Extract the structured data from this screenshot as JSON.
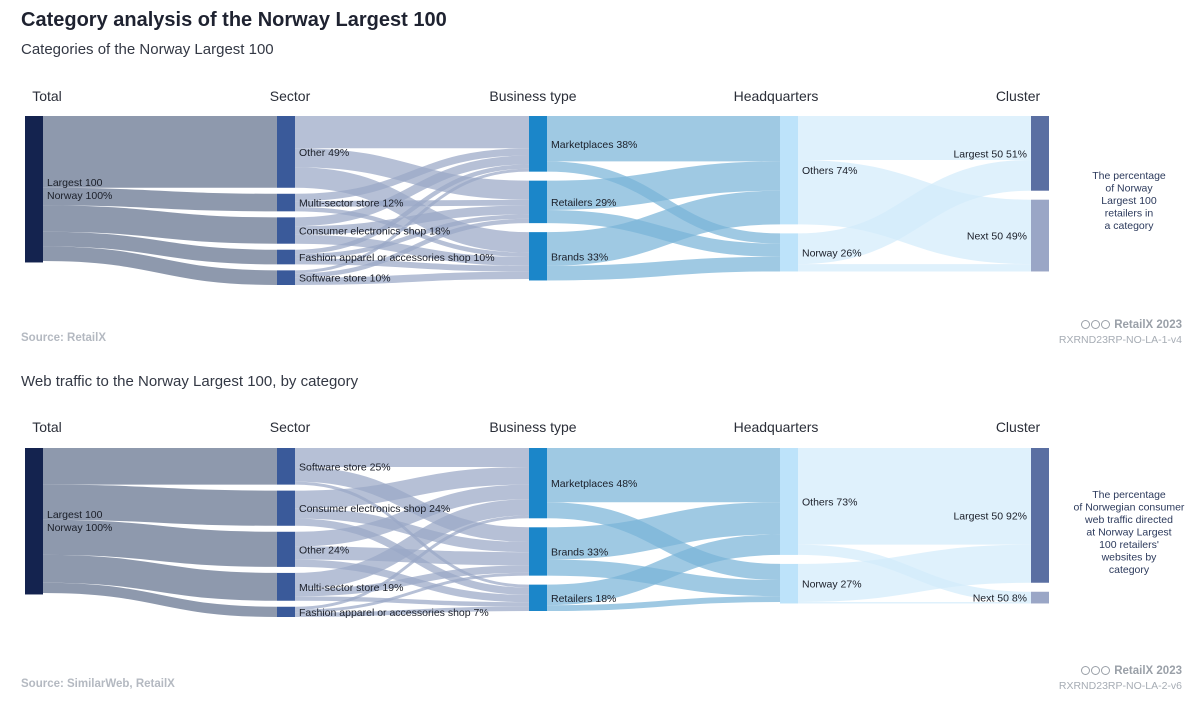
{
  "title": "Category analysis of the Norway Largest 100",
  "brand": "RetailX 2023",
  "chart_data": [
    {
      "type": "sankey",
      "title": "Categories of the Norway Largest 100",
      "source": "Source: RetailX",
      "code": "RXRND23RP-NO-LA-1-v4",
      "note": [
        "The percentage",
        "of Norway",
        "Largest 100",
        "retailers in",
        "a category"
      ],
      "columns": [
        "Total",
        "Sector",
        "Business type",
        "Headquarters",
        "Cluster"
      ],
      "nodes": [
        {
          "id": "total",
          "col": 0,
          "label": "Largest 100",
          "label2": "Norway 100%",
          "value": 100,
          "color": "#14234f"
        },
        {
          "id": "s_other",
          "col": 1,
          "label": "Other 49%",
          "value": 49,
          "color": "#3a5a9a"
        },
        {
          "id": "s_multi",
          "col": 1,
          "label": "Multi-sector store 12%",
          "value": 12,
          "color": "#3a5a9a"
        },
        {
          "id": "s_elec",
          "col": 1,
          "label": "Consumer electronics shop 18%",
          "value": 18,
          "color": "#3a5a9a"
        },
        {
          "id": "s_fash",
          "col": 1,
          "label": "Fashion apparel or accessories shop 10%",
          "value": 10,
          "color": "#3a5a9a"
        },
        {
          "id": "s_soft",
          "col": 1,
          "label": "Software store 10%",
          "value": 10,
          "color": "#3a5a9a"
        },
        {
          "id": "b_mkt",
          "col": 2,
          "label": "Marketplaces 38%",
          "value": 38,
          "color": "#1b86c9"
        },
        {
          "id": "b_ret",
          "col": 2,
          "label": "Retailers 29%",
          "value": 29,
          "color": "#1b86c9"
        },
        {
          "id": "b_brand",
          "col": 2,
          "label": "Brands 33%",
          "value": 33,
          "color": "#1b86c9"
        },
        {
          "id": "h_oth",
          "col": 3,
          "label": "Others 74%",
          "value": 74,
          "color": "#bde3fa"
        },
        {
          "id": "h_nor",
          "col": 3,
          "label": "Norway 26%",
          "value": 26,
          "color": "#bde3fa"
        },
        {
          "id": "c_l50",
          "col": 4,
          "label": "Largest 50 51%",
          "value": 51,
          "color": "#5a6fa2"
        },
        {
          "id": "c_n50",
          "col": 4,
          "label": "Next 50 49%",
          "value": 49,
          "color": "#9aa6c6"
        }
      ],
      "links": [
        [
          "total",
          "s_other",
          49
        ],
        [
          "total",
          "s_multi",
          12
        ],
        [
          "total",
          "s_elec",
          18
        ],
        [
          "total",
          "s_fash",
          10
        ],
        [
          "total",
          "s_soft",
          10
        ],
        [
          "s_other",
          "b_mkt",
          22
        ],
        [
          "s_other",
          "b_ret",
          13
        ],
        [
          "s_other",
          "b_brand",
          14
        ],
        [
          "s_multi",
          "b_mkt",
          5
        ],
        [
          "s_multi",
          "b_ret",
          4
        ],
        [
          "s_multi",
          "b_brand",
          3
        ],
        [
          "s_elec",
          "b_mkt",
          6
        ],
        [
          "s_elec",
          "b_ret",
          6
        ],
        [
          "s_elec",
          "b_brand",
          6
        ],
        [
          "s_fash",
          "b_mkt",
          3
        ],
        [
          "s_fash",
          "b_ret",
          3
        ],
        [
          "s_fash",
          "b_brand",
          4
        ],
        [
          "s_soft",
          "b_mkt",
          2
        ],
        [
          "s_soft",
          "b_ret",
          3
        ],
        [
          "s_soft",
          "b_brand",
          5
        ],
        [
          "b_mkt",
          "h_oth",
          31
        ],
        [
          "b_mkt",
          "h_nor",
          7
        ],
        [
          "b_ret",
          "h_oth",
          20
        ],
        [
          "b_ret",
          "h_nor",
          9
        ],
        [
          "b_brand",
          "h_oth",
          23
        ],
        [
          "b_brand",
          "h_nor",
          10
        ],
        [
          "h_oth",
          "c_l50",
          30
        ],
        [
          "h_oth",
          "c_n50",
          44
        ],
        [
          "h_nor",
          "c_l50",
          21
        ],
        [
          "h_nor",
          "c_n50",
          5
        ]
      ]
    },
    {
      "type": "sankey",
      "title": "Web traffic to the Norway Largest 100, by category",
      "source": "Source: SimilarWeb, RetailX",
      "code": "RXRND23RP-NO-LA-2-v6",
      "note": [
        "The percentage",
        "of Norwegian consumer",
        "web traffic directed",
        "at Norway Largest",
        "100 retailers'",
        "websites by",
        "category"
      ],
      "columns": [
        "Total",
        "Sector",
        "Business type",
        "Headquarters",
        "Cluster"
      ],
      "nodes": [
        {
          "id": "total",
          "col": 0,
          "label": "Largest 100",
          "label2": "Norway 100%",
          "value": 100,
          "color": "#14234f"
        },
        {
          "id": "s_soft",
          "col": 1,
          "label": "Software store 25%",
          "value": 25,
          "color": "#3a5a9a"
        },
        {
          "id": "s_elec",
          "col": 1,
          "label": "Consumer electronics shop 24%",
          "value": 24,
          "color": "#3a5a9a"
        },
        {
          "id": "s_other",
          "col": 1,
          "label": "Other 24%",
          "value": 24,
          "color": "#3a5a9a"
        },
        {
          "id": "s_multi",
          "col": 1,
          "label": "Multi-sector store 19%",
          "value": 19,
          "color": "#3a5a9a"
        },
        {
          "id": "s_fash",
          "col": 1,
          "label": "Fashion apparel or accessories shop 7%",
          "value": 7,
          "color": "#3a5a9a"
        },
        {
          "id": "b_mkt",
          "col": 2,
          "label": "Marketplaces 48%",
          "value": 48,
          "color": "#1b86c9"
        },
        {
          "id": "b_brand",
          "col": 2,
          "label": "Brands 33%",
          "value": 33,
          "color": "#1b86c9"
        },
        {
          "id": "b_ret",
          "col": 2,
          "label": "Retailers 18%",
          "value": 18,
          "color": "#1b86c9"
        },
        {
          "id": "h_oth",
          "col": 3,
          "label": "Others 73%",
          "value": 73,
          "color": "#bde3fa"
        },
        {
          "id": "h_nor",
          "col": 3,
          "label": "Norway 27%",
          "value": 27,
          "color": "#bde3fa"
        },
        {
          "id": "c_l50",
          "col": 4,
          "label": "Largest 50 92%",
          "value": 92,
          "color": "#5a6fa2"
        },
        {
          "id": "c_n50",
          "col": 4,
          "label": "Next 50 8%",
          "value": 8,
          "color": "#9aa6c6"
        }
      ],
      "links": [
        [
          "total",
          "s_soft",
          25
        ],
        [
          "total",
          "s_elec",
          24
        ],
        [
          "total",
          "s_other",
          24
        ],
        [
          "total",
          "s_multi",
          19
        ],
        [
          "total",
          "s_fash",
          7
        ],
        [
          "s_soft",
          "b_mkt",
          13
        ],
        [
          "s_soft",
          "b_brand",
          10
        ],
        [
          "s_soft",
          "b_ret",
          2
        ],
        [
          "s_elec",
          "b_mkt",
          12
        ],
        [
          "s_elec",
          "b_brand",
          7
        ],
        [
          "s_elec",
          "b_ret",
          5
        ],
        [
          "s_other",
          "b_mkt",
          10
        ],
        [
          "s_other",
          "b_brand",
          9
        ],
        [
          "s_other",
          "b_ret",
          5
        ],
        [
          "s_multi",
          "b_mkt",
          11
        ],
        [
          "s_multi",
          "b_brand",
          5
        ],
        [
          "s_multi",
          "b_ret",
          3
        ],
        [
          "s_fash",
          "b_mkt",
          2
        ],
        [
          "s_fash",
          "b_brand",
          2
        ],
        [
          "s_fash",
          "b_ret",
          3
        ],
        [
          "b_mkt",
          "h_oth",
          37
        ],
        [
          "b_mkt",
          "h_nor",
          11
        ],
        [
          "b_brand",
          "h_oth",
          22
        ],
        [
          "b_brand",
          "h_nor",
          11
        ],
        [
          "b_ret",
          "h_oth",
          14
        ],
        [
          "b_ret",
          "h_nor",
          4
        ],
        [
          "h_oth",
          "c_l50",
          66
        ],
        [
          "h_oth",
          "c_n50",
          7
        ],
        [
          "h_nor",
          "c_l50",
          26
        ],
        [
          "h_nor",
          "c_n50",
          1
        ]
      ]
    }
  ]
}
